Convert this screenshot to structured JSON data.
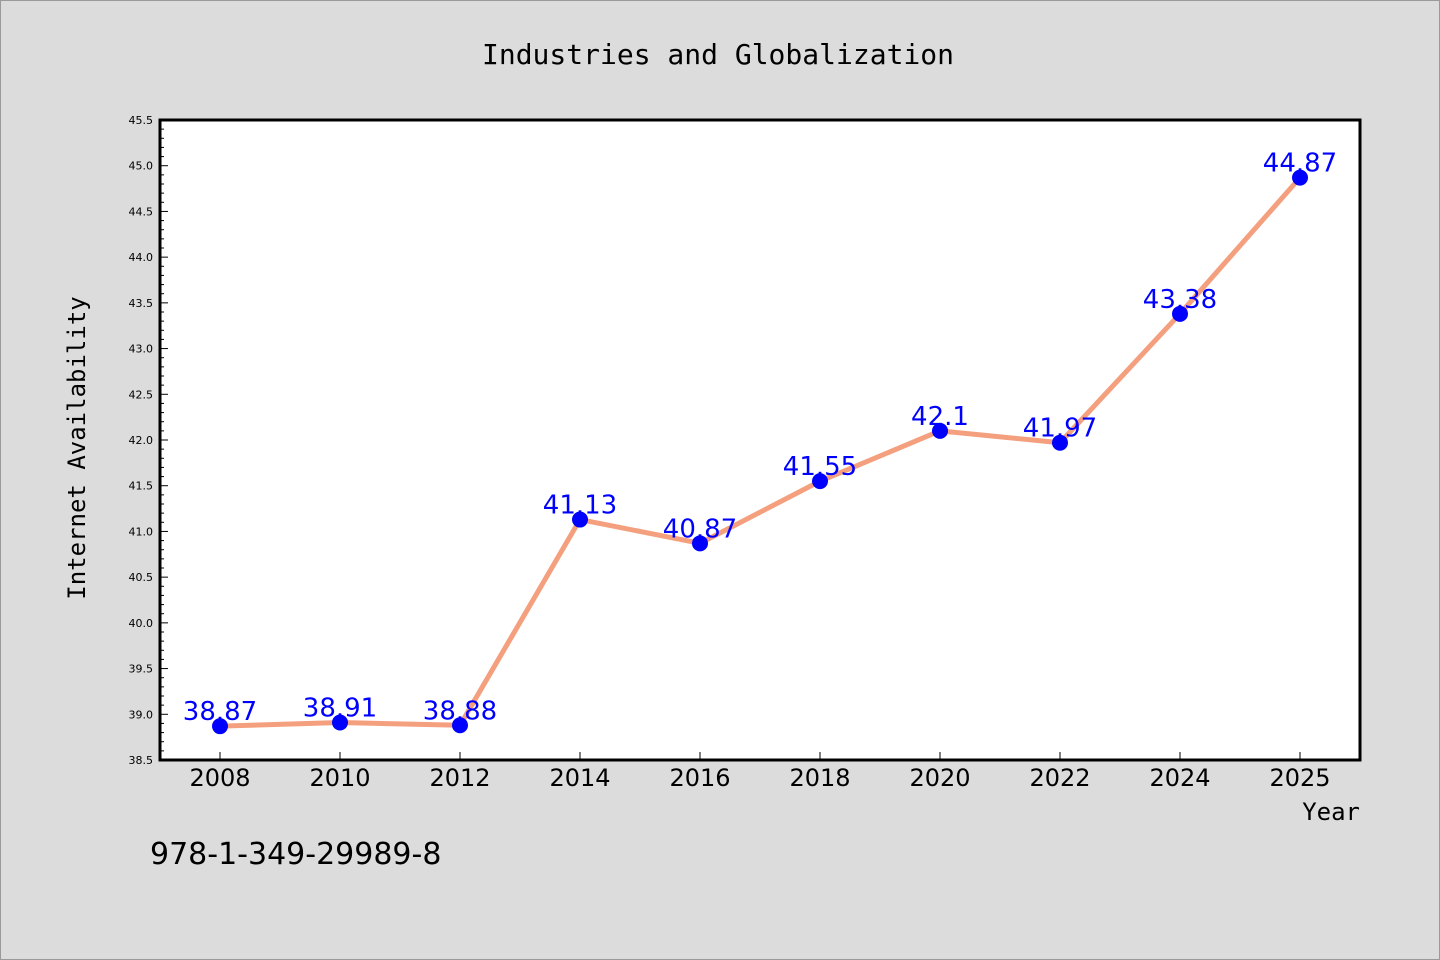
{
  "chart_data": {
    "type": "line",
    "title": "Industries and Globalization",
    "xlabel": "Year",
    "ylabel": "Internet Availability",
    "categories": [
      "2008",
      "2010",
      "2012",
      "2014",
      "2016",
      "2018",
      "2020",
      "2022",
      "2024",
      "2025"
    ],
    "series": [
      {
        "values": [
          38.87,
          38.91,
          38.88,
          41.13,
          40.87,
          41.55,
          42.1,
          41.97,
          43.38,
          44.87
        ],
        "labels": [
          "38.87",
          "38.91",
          "38.88",
          "41.13",
          "40.87",
          "41.55",
          "42.1",
          "41.97",
          "43.38",
          "44.87"
        ],
        "line_color": "#f4a07e",
        "marker_color": "#0000ff"
      }
    ],
    "ylim": [
      38.5,
      45.5
    ],
    "yticks": [
      "38.5",
      "39.0",
      "39.5",
      "40.0",
      "40.5",
      "41.0",
      "41.5",
      "42.0",
      "42.5",
      "43.0",
      "43.5",
      "44.0",
      "44.5",
      "45.0",
      "45.5"
    ],
    "grid": false,
    "legend": "none"
  },
  "footer": {
    "isbn": "978-1-349-29989-8"
  },
  "colors": {
    "background": "#dcdcdc",
    "plot_background": "#ffffff",
    "label_color": "#0000ff"
  }
}
